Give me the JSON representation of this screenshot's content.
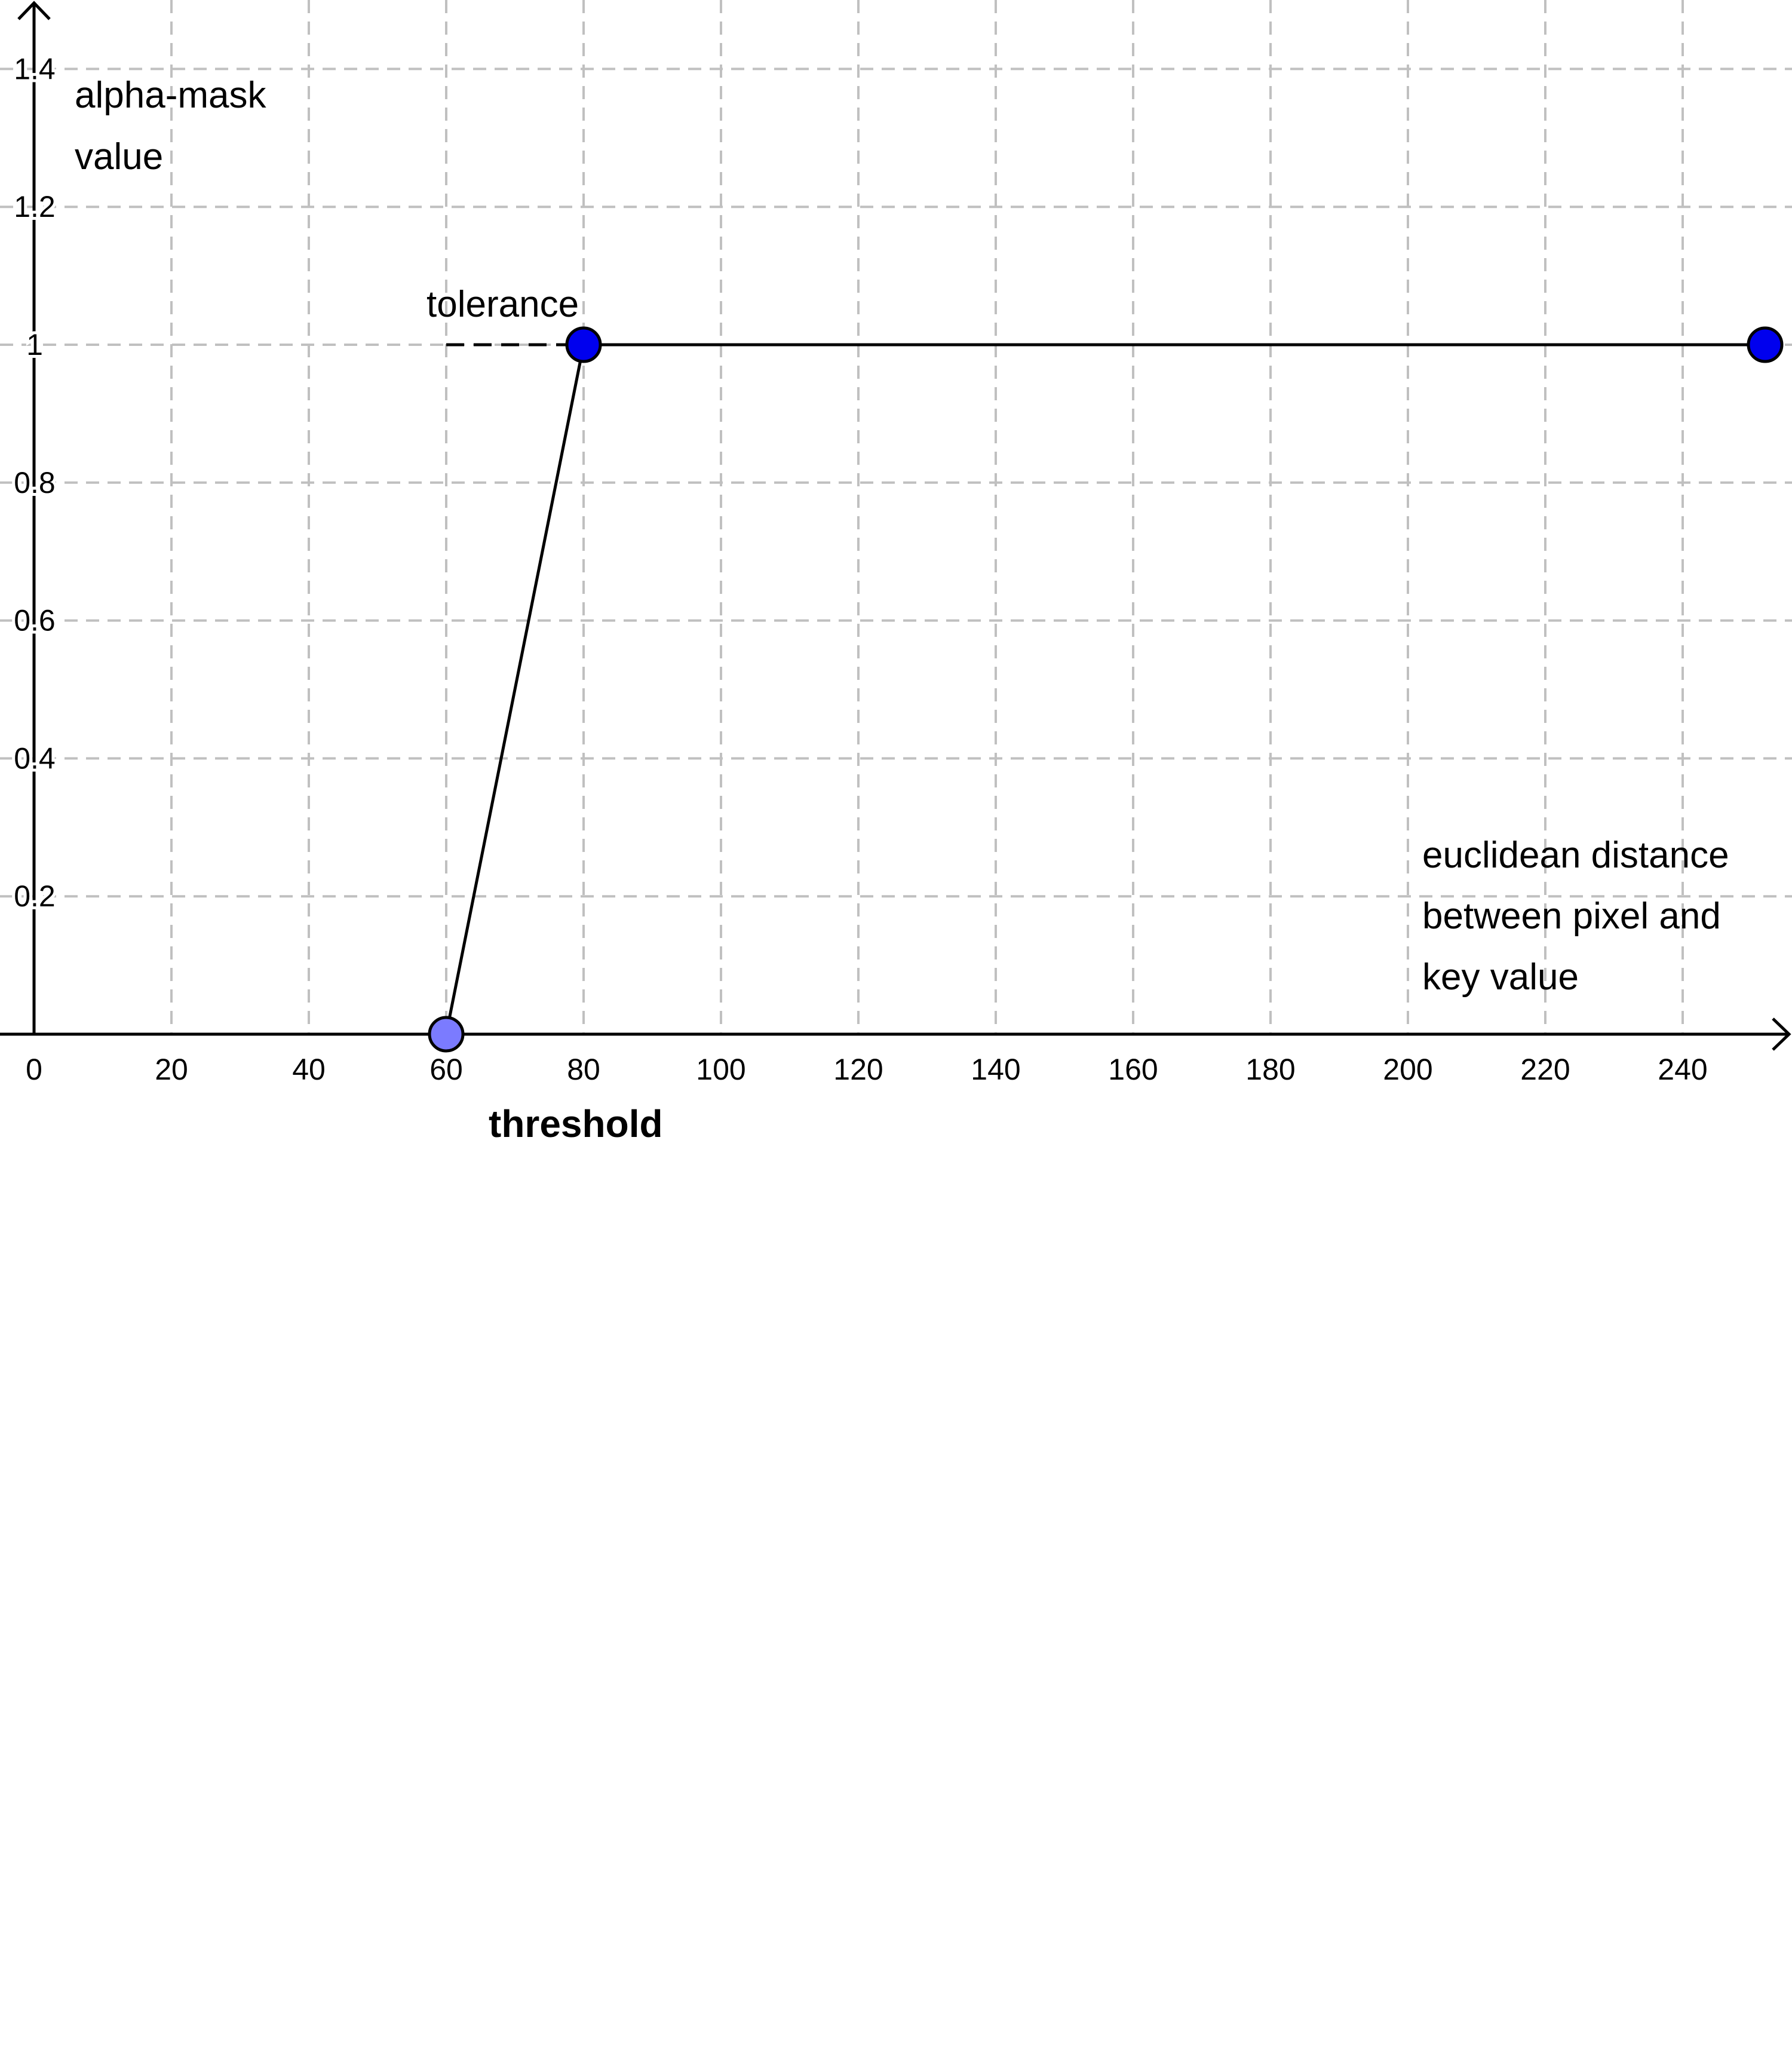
{
  "chart_data": {
    "type": "line",
    "title": "",
    "xlabel": "euclidean distance between pixel and key value",
    "ylabel": "alpha-mask value",
    "xlabel_lines": [
      "euclidean distance",
      "between pixel and",
      "key value"
    ],
    "ylabel_lines": [
      "alpha-mask",
      "value"
    ],
    "xlim": [
      0,
      255
    ],
    "ylim": [
      0,
      1.5
    ],
    "grid": true,
    "x_ticks": [
      0,
      20,
      40,
      60,
      80,
      100,
      120,
      140,
      160,
      180,
      200,
      220,
      240
    ],
    "x_tick_labels": [
      "0",
      "20",
      "40",
      "60",
      "80",
      "100",
      "120",
      "140",
      "160",
      "180",
      "200",
      "220",
      "240"
    ],
    "y_ticks": [
      0.2,
      0.4,
      0.6,
      0.8,
      1,
      1.2,
      1.4
    ],
    "y_tick_labels": [
      "0.2",
      "0.4",
      "0.6",
      "0.8",
      "1",
      "1.2",
      "1.4"
    ],
    "series": [
      {
        "name": "alpha-mask",
        "x": [
          60,
          80,
          252
        ],
        "y": [
          0,
          1,
          1
        ]
      }
    ],
    "points": [
      {
        "name": "threshold-point",
        "x": 60,
        "y": 0,
        "color": "#7b7bff"
      },
      {
        "name": "tolerance-point",
        "x": 80,
        "y": 1,
        "color": "#0000ee"
      },
      {
        "name": "end-point",
        "x": 252,
        "y": 1,
        "color": "#0000ee"
      }
    ],
    "tolerance_segment": {
      "x_start": 60,
      "x_end": 80,
      "y": 1
    },
    "annotations": {
      "tolerance": "tolerance",
      "threshold": "threshold"
    }
  }
}
